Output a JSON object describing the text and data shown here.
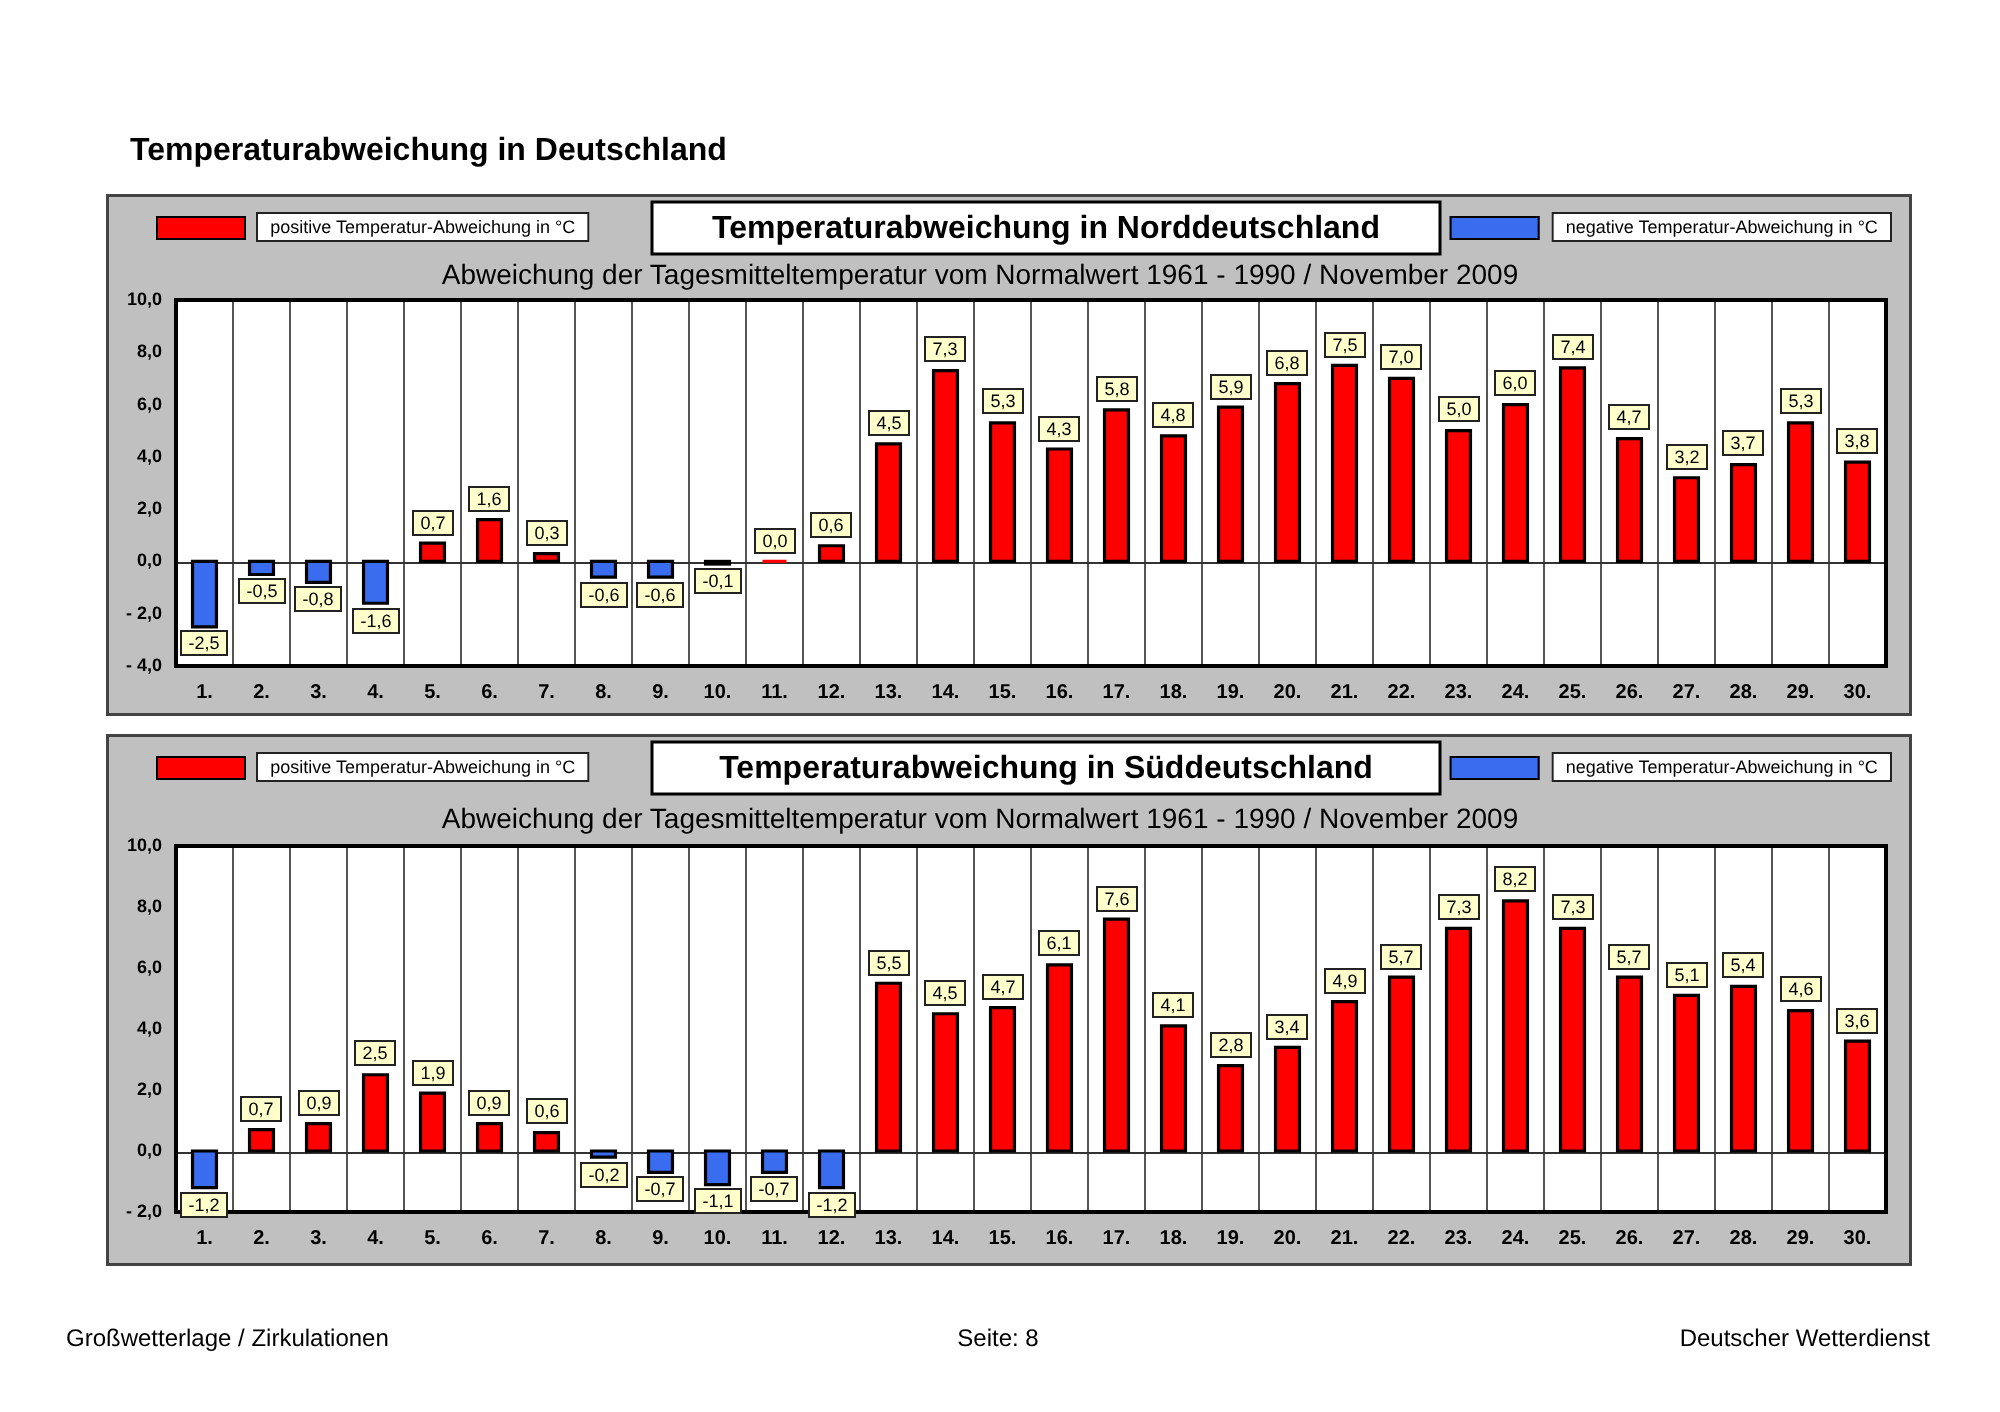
{
  "chart_data": [
    {
      "type": "bar",
      "title": "Temperaturabweichung in Norddeutschland",
      "subtitle": "Abweichung der Tagesmitteltemperatur vom Normalwert 1961 - 1990 / November 2009",
      "annotations": [
        "Temperaturabweichung in Deutschland"
      ],
      "categories": [
        "1.",
        "2.",
        "3.",
        "4.",
        "5.",
        "6.",
        "7.",
        "8.",
        "9.",
        "10.",
        "11.",
        "12.",
        "13.",
        "14.",
        "15.",
        "16.",
        "17.",
        "18.",
        "19.",
        "20.",
        "21.",
        "22.",
        "23.",
        "24.",
        "25.",
        "26.",
        "27.",
        "28.",
        "29.",
        "30."
      ],
      "series": [
        {
          "name": "positive Temperatur-Abweichung in °C",
          "color": "#ff0000",
          "values": [
            null,
            null,
            null,
            null,
            0.7,
            1.6,
            0.3,
            null,
            null,
            null,
            0.0,
            0.6,
            4.5,
            7.3,
            5.3,
            4.3,
            5.8,
            4.8,
            5.9,
            6.8,
            7.5,
            7.0,
            5.0,
            6.0,
            7.4,
            4.7,
            3.2,
            3.7,
            5.3,
            3.8
          ],
          "value_labels": [
            null,
            null,
            null,
            null,
            "0,7",
            "1,6",
            "0,3",
            null,
            null,
            null,
            "0,0",
            "0,6",
            "4,5",
            "7,3",
            "5,3",
            "4,3",
            "5,8",
            "4,8",
            "5,9",
            "6,8",
            "7,5",
            "7,0",
            "5,0",
            "6,0",
            "7,4",
            "4,7",
            "3,2",
            "3,7",
            "5,3",
            "3,8"
          ]
        },
        {
          "name": "negative Temperatur-Abweichung in °C",
          "color": "#3a6cf0",
          "values": [
            -2.5,
            -0.5,
            -0.8,
            -1.6,
            null,
            null,
            null,
            -0.6,
            -0.6,
            -0.1,
            null,
            null,
            null,
            null,
            null,
            null,
            null,
            null,
            null,
            null,
            null,
            null,
            null,
            null,
            null,
            null,
            null,
            null,
            null,
            null
          ],
          "value_labels": [
            "-2,5",
            "-0,5",
            "-0,8",
            "-1,6",
            null,
            null,
            null,
            "-0,6",
            "-0,6",
            "-0,1",
            null,
            null,
            null,
            null,
            null,
            null,
            null,
            null,
            null,
            null,
            null,
            null,
            null,
            null,
            null,
            null,
            null,
            null,
            null,
            null
          ]
        }
      ],
      "ylim": [
        -4,
        10
      ],
      "yticks": [
        {
          "value": -4,
          "label": "- 4,0"
        },
        {
          "value": -2,
          "label": "- 2,0"
        },
        {
          "value": 0,
          "label": "0,0"
        },
        {
          "value": 2,
          "label": "2,0"
        },
        {
          "value": 4,
          "label": "4,0"
        },
        {
          "value": 6,
          "label": "6,0"
        },
        {
          "value": 8,
          "label": "8,0"
        },
        {
          "value": 10,
          "label": "10,0"
        }
      ],
      "grid": "x",
      "legend": "top"
    },
    {
      "type": "bar",
      "title": "Temperaturabweichung in Süddeutschland",
      "subtitle": "Abweichung der Tagesmitteltemperatur vom Normalwert 1961 - 1990 / November 2009",
      "annotations": [
        "Großwetterlage / Zirkulationen",
        "Seite: 8",
        "Deutscher Wetterdienst"
      ],
      "categories": [
        "1.",
        "2.",
        "3.",
        "4.",
        "5.",
        "6.",
        "7.",
        "8.",
        "9.",
        "10.",
        "11.",
        "12.",
        "13.",
        "14.",
        "15.",
        "16.",
        "17.",
        "18.",
        "19.",
        "20.",
        "21.",
        "22.",
        "23.",
        "24.",
        "25.",
        "26.",
        "27.",
        "28.",
        "29.",
        "30."
      ],
      "series": [
        {
          "name": "positive Temperatur-Abweichung in °C",
          "color": "#ff0000",
          "values": [
            null,
            0.7,
            0.9,
            2.5,
            1.9,
            0.9,
            0.6,
            null,
            null,
            null,
            null,
            null,
            5.5,
            4.5,
            4.7,
            6.1,
            7.6,
            4.1,
            2.8,
            3.4,
            4.9,
            5.7,
            7.3,
            8.2,
            7.3,
            5.7,
            5.1,
            5.4,
            4.6,
            3.6
          ],
          "value_labels": [
            null,
            "0,7",
            "0,9",
            "2,5",
            "1,9",
            "0,9",
            "0,6",
            null,
            null,
            null,
            null,
            null,
            "5,5",
            "4,5",
            "4,7",
            "6,1",
            "7,6",
            "4,1",
            "2,8",
            "3,4",
            "4,9",
            "5,7",
            "7,3",
            "8,2",
            "7,3",
            "5,7",
            "5,1",
            "5,4",
            "4,6",
            "3,6"
          ]
        },
        {
          "name": "negative Temperatur-Abweichung in °C",
          "color": "#3a6cf0",
          "values": [
            -1.2,
            null,
            null,
            null,
            null,
            null,
            null,
            -0.2,
            -0.7,
            -1.1,
            -0.7,
            -1.2,
            null,
            null,
            null,
            null,
            null,
            null,
            null,
            null,
            null,
            null,
            null,
            null,
            null,
            null,
            null,
            null,
            null,
            null
          ],
          "value_labels": [
            "-1,2",
            null,
            null,
            null,
            null,
            null,
            null,
            "-0,2",
            "-0,7",
            "-1,1",
            "-0,7",
            "-1,2",
            null,
            null,
            null,
            null,
            null,
            null,
            null,
            null,
            null,
            null,
            null,
            null,
            null,
            null,
            null,
            null,
            null,
            null
          ]
        }
      ],
      "ylim": [
        -2,
        10
      ],
      "yticks": [
        {
          "value": -2,
          "label": "- 2,0"
        },
        {
          "value": 0,
          "label": "0,0"
        },
        {
          "value": 2,
          "label": "2,0"
        },
        {
          "value": 4,
          "label": "4,0"
        },
        {
          "value": 6,
          "label": "6,0"
        },
        {
          "value": 8,
          "label": "8,0"
        },
        {
          "value": 10,
          "label": "10,0"
        }
      ],
      "grid": "x",
      "legend": "top"
    }
  ]
}
